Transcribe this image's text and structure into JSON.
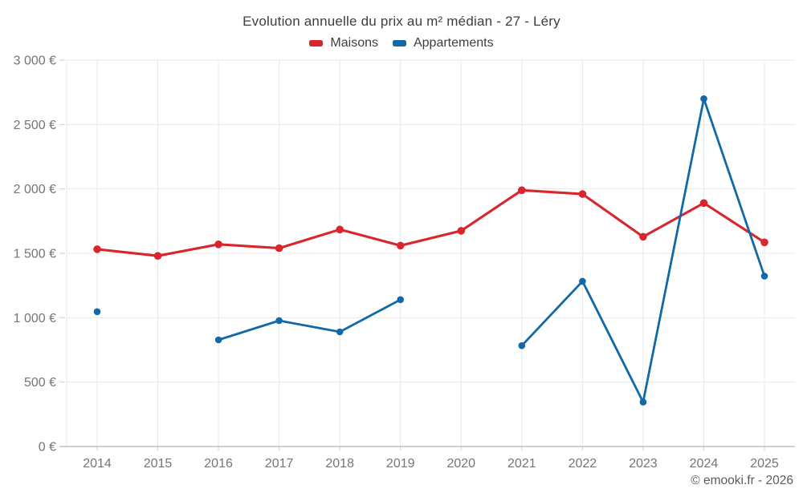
{
  "header": {
    "title": "Evolution annuelle du prix au m² médian - 27 - Léry"
  },
  "legend": {
    "items": [
      {
        "label": "Maisons",
        "color": "#d8262c"
      },
      {
        "label": "Appartements",
        "color": "#1169a8"
      }
    ]
  },
  "footer": {
    "copyright": "© emooki.fr - 2026"
  },
  "colors": {
    "maisons": "#d8262c",
    "appartements": "#1169a8",
    "gridline": "#e8e8e8",
    "axis": "#b5b5b5",
    "tick": "#cfcfcf",
    "tick_label": "#757575",
    "title_text": "#3e3e3e"
  },
  "chart_data": {
    "type": "line",
    "title": "Evolution annuelle du prix au m² médian - 27 - Léry",
    "x": [
      2014,
      2015,
      2016,
      2017,
      2018,
      2019,
      2020,
      2021,
      2022,
      2023,
      2024,
      2025
    ],
    "series": [
      {
        "name": "Maisons",
        "color": "#d8262c",
        "values": [
          1532,
          1480,
          1570,
          1540,
          1685,
          1560,
          1675,
          1990,
          1960,
          1628,
          1890,
          1585
        ]
      },
      {
        "name": "Appartements",
        "color": "#1169a8",
        "values": [
          1047,
          null,
          828,
          977,
          890,
          1140,
          null,
          783,
          1283,
          345,
          2700,
          1323
        ]
      }
    ],
    "xlabel": "",
    "ylabel": "",
    "ylim": [
      0,
      3000
    ],
    "ytick_step": 500,
    "ytick_labels": [
      "0 €",
      "500 €",
      "1 000 €",
      "1 500 €",
      "2 000 €",
      "2 500 €",
      "3 000 €"
    ],
    "grid": true,
    "legend_position": "top",
    "missing_points": {
      "Appartements": [
        2015,
        2020
      ]
    }
  }
}
